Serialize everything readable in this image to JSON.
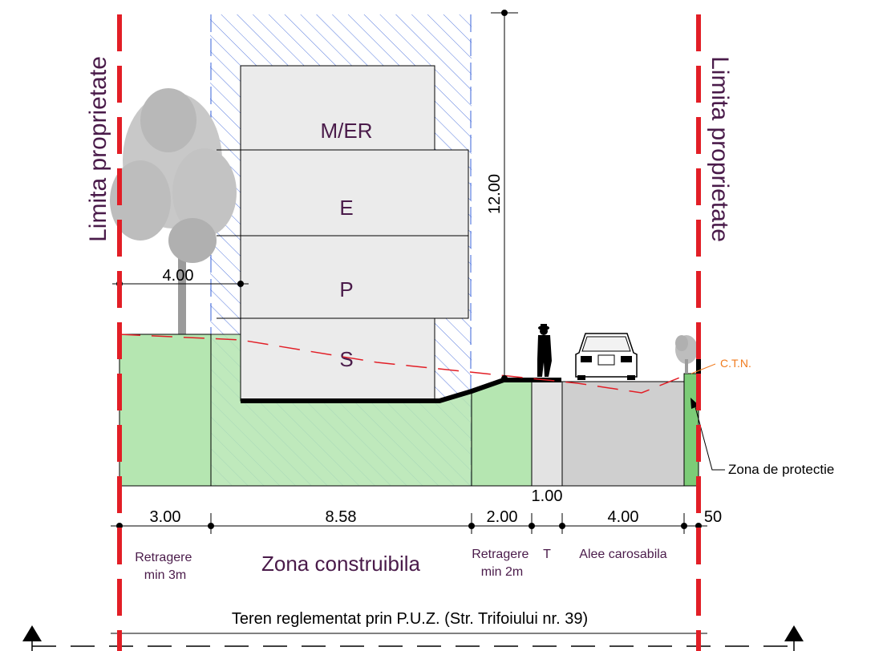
{
  "boundary_label_left": "Limita proprietate",
  "boundary_label_right": "Limita proprietate",
  "floors": [
    "M/ER",
    "E",
    "P",
    "S"
  ],
  "height_dim": "12.00",
  "setback_dim": "4.00",
  "ctn_label": "C.T.N.",
  "protection_label": "Zona de protectie",
  "sidewalk_dim": "1.00",
  "segments": [
    {
      "dim": "3.00",
      "label": "Retragere\nmin 3m"
    },
    {
      "dim": "8.58",
      "label": "Zona construibila"
    },
    {
      "dim": "2.00",
      "label": "Retragere\nmin 2m"
    },
    {
      "dim": "",
      "label": "T"
    },
    {
      "dim": "4.00",
      "label": "Alee carosabila"
    },
    {
      "dim": "50",
      "label": ""
    }
  ],
  "bottom_label": "Teren reglementat prin P.U.Z. (Str. Trifoiului nr. 39)",
  "colors": {
    "boundary": "#e21e26",
    "green_zone": "#b5e6b1",
    "green_dark": "#7ccc77",
    "road": "#cfcfcf",
    "sidewalk": "#e3e3e3",
    "building": "#ebebeb",
    "hatch": "#3a63d8",
    "purple_text": "#4a1b4a",
    "orange": "#f07b1e",
    "terrain": "#e21e26"
  },
  "icons": [
    "tree-icon",
    "person-icon",
    "car-icon",
    "shrub-icon",
    "section-arrow-icon"
  ]
}
